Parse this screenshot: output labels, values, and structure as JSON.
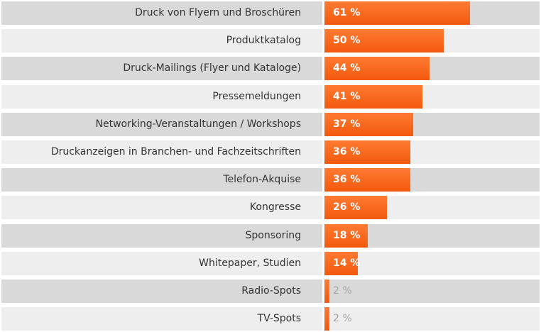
{
  "chart_data": {
    "type": "bar",
    "orientation": "horizontal",
    "categories": [
      "Druck von Flyern und Broschüren",
      "Produktkatalog",
      "Druck-Mailings (Flyer und Kataloge)",
      "Pressemeldungen",
      "Networking-Veranstaltungen / Workshops",
      "Druckanzeigen in Branchen- und Fachzeitschriften",
      "Telefon-Akquise",
      "Kongresse",
      "Sponsoring",
      "Whitepaper, Studien",
      "Radio-Spots",
      "TV-Spots"
    ],
    "values": [
      61,
      50,
      44,
      41,
      37,
      36,
      36,
      26,
      18,
      14,
      2,
      2
    ],
    "value_labels": [
      "61 %",
      "50 %",
      "44 %",
      "41 %",
      "37 %",
      "36 %",
      "36 %",
      "26 %",
      "18 %",
      "14 %",
      "2 %",
      "2 %"
    ],
    "xlim": [
      0,
      90
    ],
    "title": "",
    "xlabel": "",
    "ylabel": "",
    "legend": "none",
    "colors": {
      "bar_top": "#ff7a33",
      "bar_bottom": "#f25a0d",
      "row_dark": "#d9d9d9",
      "row_light": "#eeeeee",
      "label_text": "#333333",
      "value_inside": "#ffffff",
      "value_outside": "#a6a6a6"
    }
  }
}
